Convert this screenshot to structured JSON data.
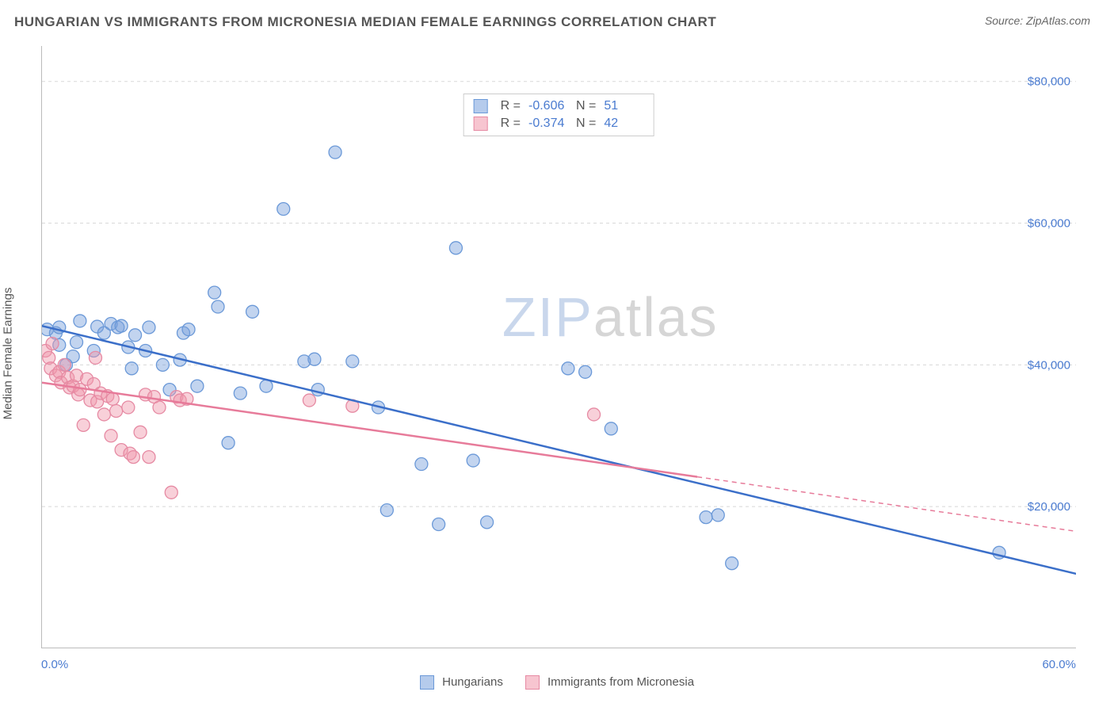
{
  "title": "HUNGARIAN VS IMMIGRANTS FROM MICRONESIA MEDIAN FEMALE EARNINGS CORRELATION CHART",
  "source": "Source: ZipAtlas.com",
  "ylabel": "Median Female Earnings",
  "watermark_a": "ZIP",
  "watermark_b": "atlas",
  "chart": {
    "type": "scatter-with-regression",
    "background_color": "#ffffff",
    "grid_color": "#d8d8d8",
    "grid_dash": "4,4",
    "axis_color": "#bbbbbb",
    "tick_color": "#888888",
    "xlim": [
      0,
      60
    ],
    "ylim": [
      0,
      85000
    ],
    "x_ticks_major": [
      0,
      10,
      20,
      30,
      40,
      50,
      60
    ],
    "y_gridlines": [
      20000,
      40000,
      60000,
      80000
    ],
    "x_tick_labels": {
      "left": "0.0%",
      "right": "60.0%"
    },
    "y_tick_labels": [
      "$20,000",
      "$40,000",
      "$60,000",
      "$80,000"
    ],
    "y_tick_label_color": "#4a7bd0",
    "x_tick_label_color": "#4a7bd0",
    "label_fontsize": 15,
    "marker_radius": 8,
    "marker_stroke_width": 1.3,
    "regression_stroke_width": 2.5,
    "series": [
      {
        "name": "Hungarians",
        "color_fill": "rgba(120,160,220,0.45)",
        "color_stroke": "#6b99d8",
        "reg_color": "#3b6fc9",
        "R": "-0.606",
        "N": "51",
        "regression": {
          "x1": 0,
          "y1": 45500,
          "x2": 60,
          "y2": 10500,
          "dash_after_x": null
        },
        "points": [
          [
            0.3,
            45000
          ],
          [
            0.8,
            44500
          ],
          [
            1.0,
            45300
          ],
          [
            1.0,
            42800
          ],
          [
            1.4,
            40000
          ],
          [
            1.8,
            41200
          ],
          [
            2.0,
            43200
          ],
          [
            2.2,
            46200
          ],
          [
            3.0,
            42000
          ],
          [
            3.2,
            45400
          ],
          [
            3.6,
            44500
          ],
          [
            4.0,
            45800
          ],
          [
            4.4,
            45300
          ],
          [
            4.6,
            45500
          ],
          [
            5.0,
            42500
          ],
          [
            5.2,
            39500
          ],
          [
            5.4,
            44200
          ],
          [
            6.0,
            42000
          ],
          [
            6.2,
            45300
          ],
          [
            7.0,
            40000
          ],
          [
            7.4,
            36500
          ],
          [
            8.0,
            40700
          ],
          [
            8.2,
            44500
          ],
          [
            8.5,
            45000
          ],
          [
            9.0,
            37000
          ],
          [
            10.0,
            50200
          ],
          [
            10.2,
            48200
          ],
          [
            10.8,
            29000
          ],
          [
            11.5,
            36000
          ],
          [
            12.2,
            47500
          ],
          [
            13.0,
            37000
          ],
          [
            14.0,
            62000
          ],
          [
            15.2,
            40500
          ],
          [
            15.8,
            40800
          ],
          [
            16.0,
            36500
          ],
          [
            17.0,
            70000
          ],
          [
            18.0,
            40500
          ],
          [
            19.5,
            34000
          ],
          [
            20.0,
            19500
          ],
          [
            22.0,
            26000
          ],
          [
            23.0,
            17500
          ],
          [
            24.0,
            56500
          ],
          [
            25.0,
            26500
          ],
          [
            25.8,
            17800
          ],
          [
            30.5,
            39500
          ],
          [
            31.5,
            39000
          ],
          [
            33.0,
            31000
          ],
          [
            38.5,
            18500
          ],
          [
            39.2,
            18800
          ],
          [
            40.0,
            12000
          ],
          [
            55.5,
            13500
          ]
        ]
      },
      {
        "name": "Immigrants from Micronesia",
        "color_fill": "rgba(240,150,170,0.45)",
        "color_stroke": "#e68aa3",
        "reg_color": "#e77b9a",
        "R": "-0.374",
        "N": "42",
        "regression": {
          "x1": 0,
          "y1": 37500,
          "x2": 60,
          "y2": 16500,
          "dash_after_x": 38
        },
        "points": [
          [
            0.2,
            42000
          ],
          [
            0.4,
            41000
          ],
          [
            0.5,
            39500
          ],
          [
            0.6,
            43000
          ],
          [
            0.8,
            38500
          ],
          [
            1.0,
            39000
          ],
          [
            1.1,
            37500
          ],
          [
            1.3,
            40000
          ],
          [
            1.5,
            38200
          ],
          [
            1.6,
            36800
          ],
          [
            1.8,
            37000
          ],
          [
            2.0,
            38500
          ],
          [
            2.1,
            35800
          ],
          [
            2.2,
            36500
          ],
          [
            2.4,
            31500
          ],
          [
            2.6,
            38000
          ],
          [
            2.8,
            35000
          ],
          [
            3.0,
            37300
          ],
          [
            3.1,
            41000
          ],
          [
            3.2,
            34800
          ],
          [
            3.4,
            36000
          ],
          [
            3.6,
            33000
          ],
          [
            3.8,
            35600
          ],
          [
            4.0,
            30000
          ],
          [
            4.1,
            35200
          ],
          [
            4.3,
            33500
          ],
          [
            4.6,
            28000
          ],
          [
            5.0,
            34000
          ],
          [
            5.1,
            27500
          ],
          [
            5.3,
            27000
          ],
          [
            5.7,
            30500
          ],
          [
            6.0,
            35800
          ],
          [
            6.2,
            27000
          ],
          [
            6.5,
            35500
          ],
          [
            6.8,
            34000
          ],
          [
            7.5,
            22000
          ],
          [
            7.8,
            35500
          ],
          [
            8.0,
            35000
          ],
          [
            8.4,
            35200
          ],
          [
            15.5,
            35000
          ],
          [
            18.0,
            34200
          ],
          [
            32.0,
            33000
          ]
        ]
      }
    ]
  },
  "bottom_legend": [
    {
      "swatch_fill": "rgba(120,160,220,0.55)",
      "swatch_stroke": "#6b99d8",
      "label": "Hungarians"
    },
    {
      "swatch_fill": "rgba(240,150,170,0.55)",
      "swatch_stroke": "#e68aa3",
      "label": "Immigrants from Micronesia"
    }
  ]
}
